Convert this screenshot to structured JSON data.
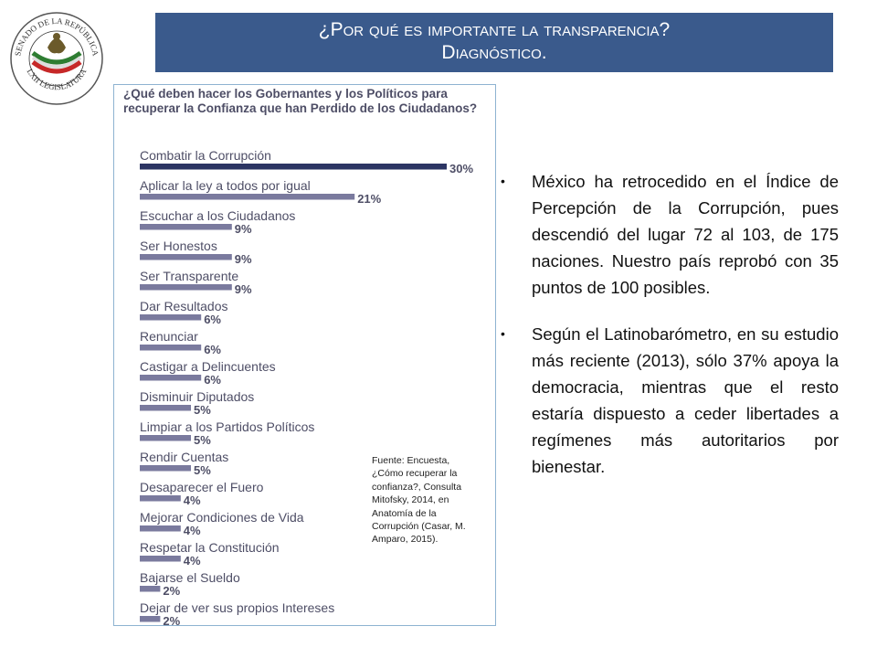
{
  "header": {
    "title_line1": "¿Por qué es importante la transparencia?",
    "title_line2": "Diagnóstico."
  },
  "seal": {
    "text_top": "SENADO DE LA REPÚBLICA",
    "text_bottom": "LXII LEGISLATURA",
    "colors": {
      "green": "#2e7d32",
      "red": "#c62828",
      "gold": "#b08d2e"
    }
  },
  "chart_data": {
    "type": "bar",
    "orientation": "horizontal",
    "title": "¿Qué deben hacer los Gobernantes y los Políticos para recuperar la Confianza que han Perdido de los Ciudadanos?",
    "categories": [
      "Combatir la Corrupción",
      "Aplicar la ley a todos por igual",
      "Escuchar a los Ciudadanos",
      "Ser Honestos",
      "Ser Transparente",
      "Dar Resultados",
      "Renunciar",
      "Castigar a Delincuentes",
      "Disminuir Diputados",
      "Limpiar a los Partidos Políticos",
      "Rendir Cuentas",
      "Desaparecer el Fuero",
      "Mejorar Condiciones de Vida",
      "Respetar la Constitución",
      "Bajarse el Sueldo",
      "Dejar de ver sus propios Intereses"
    ],
    "values": [
      30,
      21,
      9,
      9,
      9,
      6,
      6,
      6,
      5,
      5,
      5,
      4,
      4,
      4,
      2,
      2
    ],
    "value_labels": [
      "30%",
      "21%",
      "9%",
      "9%",
      "9%",
      "6%",
      "6%",
      "6%",
      "5%",
      "5%",
      "5%",
      "4%",
      "4%",
      "4%",
      "2%",
      "2%"
    ],
    "unit": "%",
    "xlim": [
      0,
      30
    ],
    "grid": false,
    "legend": "none",
    "colors": {
      "highlight": "#2c3563",
      "bar": "#7a7a9e",
      "label": "#4e4e66"
    }
  },
  "source_note": "Fuente: Encuesta, ¿Cómo recuperar la confianza?, Consulta Mitofsky, 2014, en Anatomía de la Corrupción (Casar, M. Amparo, 2015).",
  "bullets": [
    "México ha retrocedido en el Índice de Percepción de la Corrupción, pues descendió del lugar 72 al 103, de 175 naciones. Nuestro país reprobó con 35 puntos de 100 posibles.",
    "Según el Latinobarómetro, en su estudio más reciente (2013), sólo 37% apoya la democracia, mientras que el resto estaría dispuesto a ceder libertades a regímenes más autoritarios por bienestar."
  ],
  "colors": {
    "banner": "#3a5a8c",
    "chart_border": "#8eb3d1"
  }
}
